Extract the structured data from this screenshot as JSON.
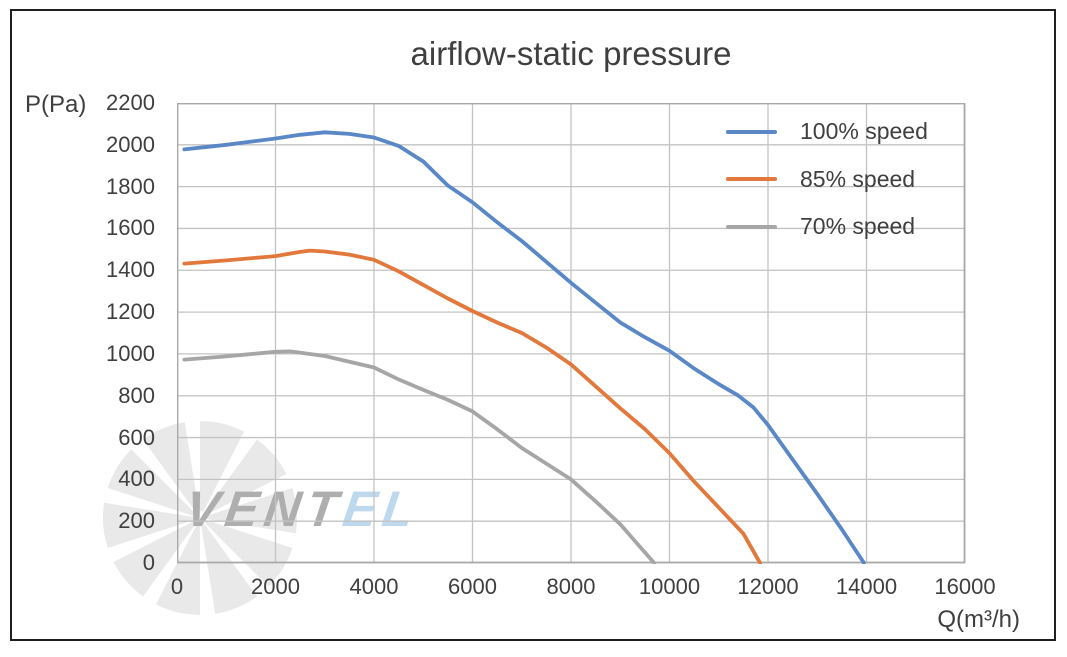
{
  "title": "airflow-static pressure",
  "y_axis": {
    "label": "P(Pa)",
    "min": 0,
    "max": 2200,
    "step": 200,
    "tick_labels": [
      "2200",
      "2000",
      "1800",
      "1600",
      "1400",
      "1200",
      "1000",
      "800",
      "600",
      "400",
      "200",
      "0"
    ]
  },
  "x_axis": {
    "label": "Q(m³/h)",
    "min": 0,
    "max": 16000,
    "step": 2000,
    "tick_labels": [
      "0",
      "2000",
      "4000",
      "6000",
      "8000",
      "10000",
      "12000",
      "14000",
      "16000"
    ]
  },
  "legend": {
    "position": "top-right-inside",
    "entries": [
      {
        "label": "100% speed",
        "color": "#5a87c6"
      },
      {
        "label": "85% speed",
        "color": "#e2783b"
      },
      {
        "label": "70% speed",
        "color": "#a6a6a6"
      }
    ]
  },
  "watermark": {
    "brand_gray": "VENT",
    "brand_blue": "EL",
    "gray_color": "#aeaeae",
    "blue_color": "#bed9ed",
    "fan_color": "#e9e9e9"
  },
  "colors": {
    "gridline": "#c3c3c3",
    "plot_frame": "#a9a9a9",
    "text": "#3f3f3f",
    "border": "#1f1f1f"
  },
  "chart_data": {
    "type": "line",
    "title": "airflow-static pressure",
    "xlabel": "Q(m³/h)",
    "ylabel": "P(Pa)",
    "xlim": [
      0,
      16000
    ],
    "ylim": [
      0,
      2200
    ],
    "grid": true,
    "legend_position": "top-right-inside",
    "series": [
      {
        "name": "100% speed",
        "color": "#5a87c6",
        "points": [
          [
            150,
            1978
          ],
          [
            1000,
            2000
          ],
          [
            2000,
            2030
          ],
          [
            2500,
            2048
          ],
          [
            3000,
            2060
          ],
          [
            3500,
            2052
          ],
          [
            4000,
            2035
          ],
          [
            4500,
            1995
          ],
          [
            5000,
            1920
          ],
          [
            5500,
            1805
          ],
          [
            6000,
            1725
          ],
          [
            6500,
            1630
          ],
          [
            7000,
            1540
          ],
          [
            7500,
            1440
          ],
          [
            8000,
            1340
          ],
          [
            8500,
            1245
          ],
          [
            9000,
            1150
          ],
          [
            9500,
            1080
          ],
          [
            10000,
            1015
          ],
          [
            10500,
            930
          ],
          [
            11000,
            855
          ],
          [
            11400,
            800
          ],
          [
            11700,
            745
          ],
          [
            12000,
            660
          ],
          [
            12500,
            495
          ],
          [
            13000,
            330
          ],
          [
            13500,
            160
          ],
          [
            13950,
            0
          ]
        ]
      },
      {
        "name": "85% speed",
        "color": "#e2783b",
        "points": [
          [
            150,
            1432
          ],
          [
            1000,
            1447
          ],
          [
            2000,
            1468
          ],
          [
            2500,
            1488
          ],
          [
            2700,
            1494
          ],
          [
            3000,
            1490
          ],
          [
            3500,
            1475
          ],
          [
            4000,
            1450
          ],
          [
            4500,
            1395
          ],
          [
            5000,
            1330
          ],
          [
            5500,
            1265
          ],
          [
            6000,
            1205
          ],
          [
            6500,
            1150
          ],
          [
            7000,
            1100
          ],
          [
            7500,
            1030
          ],
          [
            8000,
            950
          ],
          [
            8500,
            845
          ],
          [
            9000,
            740
          ],
          [
            9500,
            640
          ],
          [
            10000,
            525
          ],
          [
            10500,
            390
          ],
          [
            11000,
            265
          ],
          [
            11500,
            140
          ],
          [
            11840,
            0
          ]
        ]
      },
      {
        "name": "70% speed",
        "color": "#a6a6a6",
        "points": [
          [
            150,
            973
          ],
          [
            1000,
            988
          ],
          [
            2000,
            1010
          ],
          [
            2300,
            1012
          ],
          [
            3000,
            990
          ],
          [
            4000,
            935
          ],
          [
            4500,
            878
          ],
          [
            5000,
            828
          ],
          [
            5500,
            780
          ],
          [
            6000,
            725
          ],
          [
            6500,
            640
          ],
          [
            7000,
            550
          ],
          [
            7500,
            475
          ],
          [
            8000,
            400
          ],
          [
            8500,
            295
          ],
          [
            9000,
            185
          ],
          [
            9690,
            0
          ]
        ]
      }
    ]
  }
}
